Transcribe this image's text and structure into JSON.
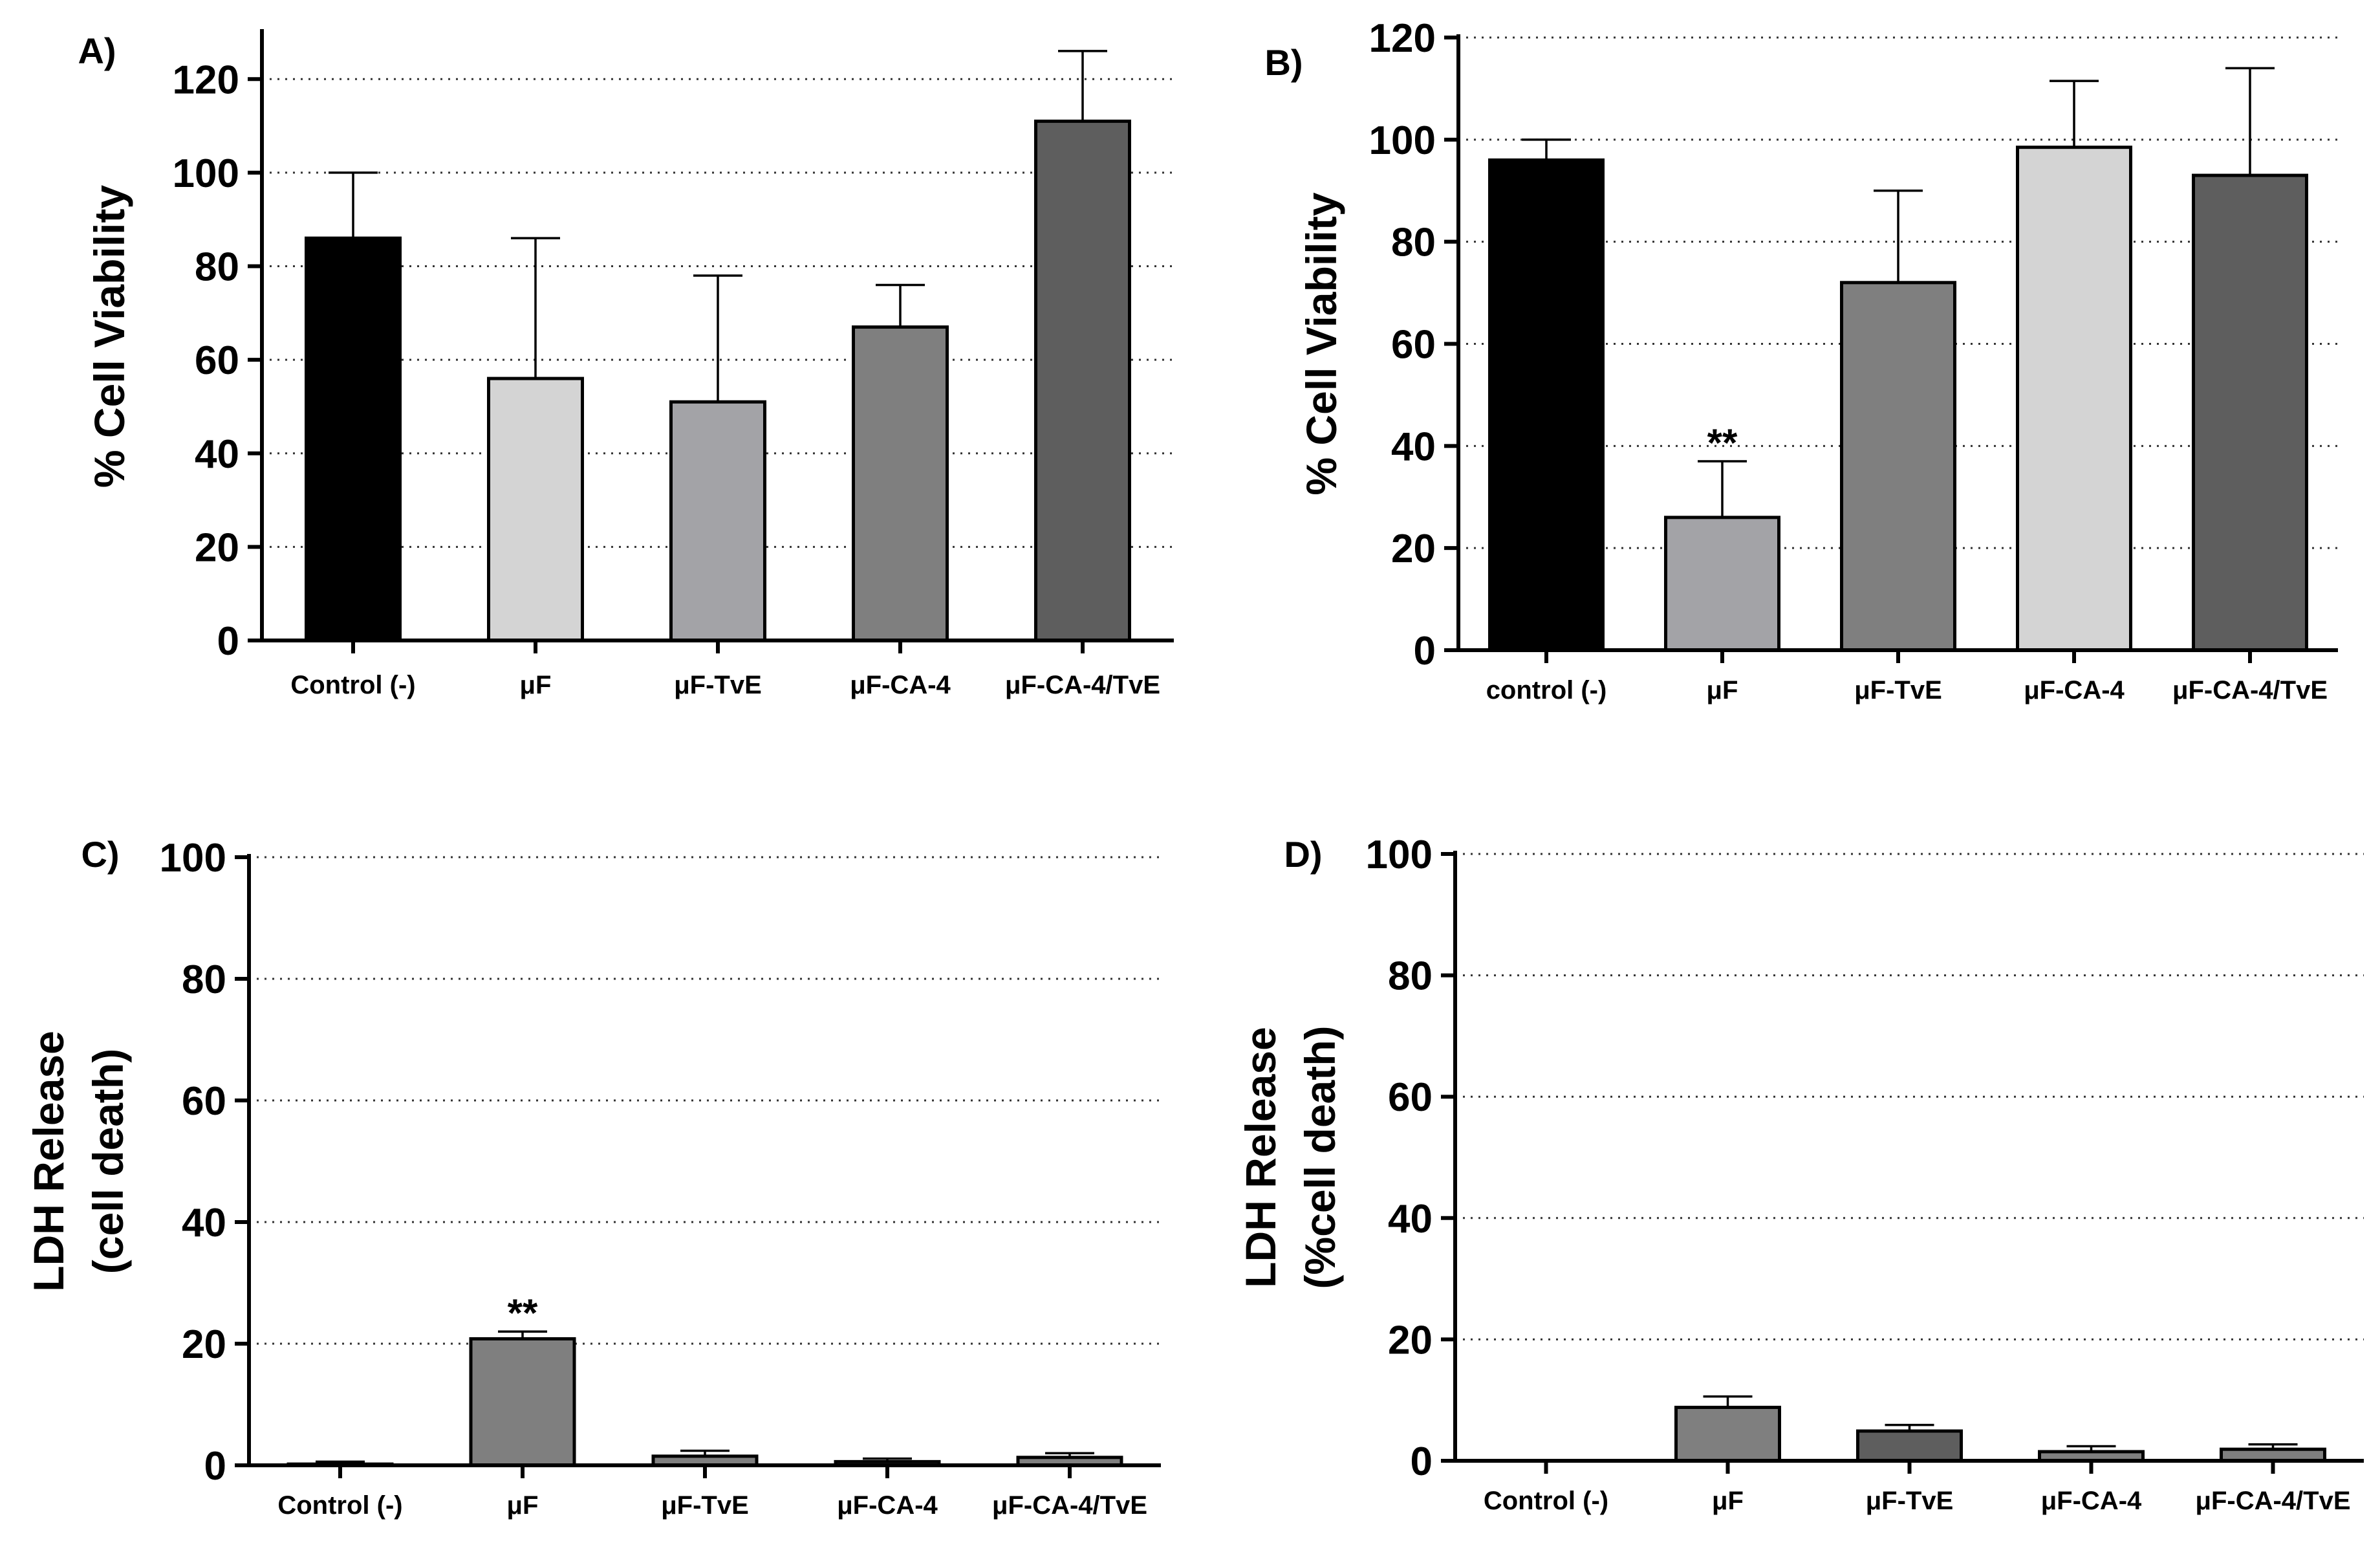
{
  "chart_data": [
    {
      "panel": "A)",
      "type": "bar",
      "ylabel": "% Cell Viability",
      "ylim": [
        0,
        130
      ],
      "yticks": [
        0,
        20,
        40,
        60,
        80,
        100,
        120
      ],
      "grid": true,
      "categories": [
        "Control (-)",
        "μF",
        "μF-TvE",
        "μF-CA-4",
        "μF-CA-4/TvE"
      ],
      "values": [
        86,
        56,
        51,
        67,
        111
      ],
      "errors": [
        14,
        30,
        27,
        9,
        15
      ],
      "colors": [
        "#000000",
        "#d4d4d4",
        "#a3a3a7",
        "#7f7f7f",
        "#5e5e5e"
      ],
      "annotations": [
        "",
        "",
        "",
        "",
        ""
      ]
    },
    {
      "panel": "B)",
      "type": "bar",
      "ylabel": "% Cell Viability",
      "ylim": [
        0,
        120
      ],
      "yticks": [
        0,
        20,
        40,
        60,
        80,
        100,
        120
      ],
      "grid": true,
      "categories": [
        "control (-)",
        "μF",
        "μF-TvE",
        "μF-CA-4",
        "μF-CA-4/TvE"
      ],
      "values": [
        96,
        26,
        72,
        98.5,
        93
      ],
      "errors": [
        4,
        11,
        18,
        13,
        21
      ],
      "colors": [
        "#000000",
        "#a3a3a7",
        "#7f7f7f",
        "#d4d4d4",
        "#5e5e5e"
      ],
      "annotations": [
        "",
        "**",
        "",
        "",
        ""
      ]
    },
    {
      "panel": "C)",
      "type": "bar",
      "ylabel_lines": [
        "LDH Release",
        "(cell death)"
      ],
      "ylim": [
        0,
        100
      ],
      "yticks": [
        0,
        20,
        40,
        60,
        80,
        100
      ],
      "grid": true,
      "categories": [
        "Control (-)",
        "μF",
        "μF-TvE",
        "μF-CA-4",
        "μF-CA-4/TvE"
      ],
      "values": [
        0.2,
        20.8,
        1.5,
        0.6,
        1.3
      ],
      "errors": [
        0.4,
        1.2,
        0.9,
        0.5,
        0.7
      ],
      "colors": [
        "#7f7f7f",
        "#7f7f7f",
        "#7f7f7f",
        "#7f7f7f",
        "#7f7f7f"
      ],
      "annotations": [
        "",
        "**",
        "",
        "",
        ""
      ]
    },
    {
      "panel": "D)",
      "type": "bar",
      "ylabel_lines": [
        "LDH Release",
        "(%cell death)"
      ],
      "ylim": [
        0,
        100
      ],
      "yticks": [
        0,
        20,
        40,
        60,
        80,
        100
      ],
      "grid": true,
      "categories": [
        "Control (-)",
        "μF",
        "μF-TvE",
        "μF-CA-4",
        "μF-CA-4/TvE"
      ],
      "values": [
        0,
        8.8,
        4.9,
        1.5,
        1.9
      ],
      "errors": [
        0,
        1.8,
        1.0,
        0.9,
        0.8
      ],
      "colors": [
        "#7f7f7f",
        "#7f7f7f",
        "#5e5e5e",
        "#7f7f7f",
        "#7f7f7f"
      ],
      "annotations": [
        "",
        "",
        "",
        "",
        ""
      ]
    }
  ]
}
